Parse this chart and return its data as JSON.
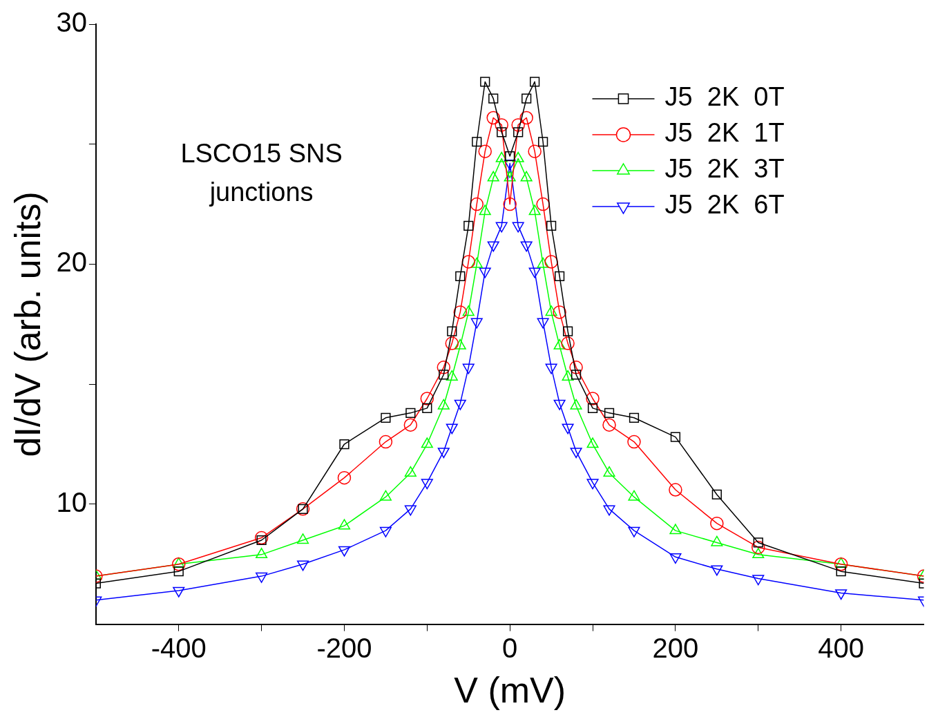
{
  "chart_data": {
    "type": "line",
    "xlabel": "V (mV)",
    "ylabel": "dI/dV (arb. units)",
    "x": [
      -500,
      -400,
      -300,
      -250,
      -200,
      -150,
      -120,
      -100,
      -80,
      -70,
      -60,
      -50,
      -40,
      -30,
      -20,
      -10,
      0,
      10,
      20,
      30,
      40,
      50,
      60,
      70,
      80,
      100,
      120,
      150,
      200,
      250,
      300,
      400,
      500
    ],
    "series": [
      {
        "name": "J5  2K  0T",
        "color": "#000000",
        "marker": "square",
        "values": [
          6.7,
          7.2,
          8.5,
          9.8,
          12.5,
          13.6,
          13.8,
          14.0,
          15.4,
          17.2,
          19.5,
          21.6,
          25.1,
          27.6,
          26.9,
          25.5,
          24.5,
          25.5,
          26.9,
          27.6,
          25.1,
          21.6,
          19.5,
          17.2,
          15.4,
          14.0,
          13.8,
          13.6,
          12.8,
          10.4,
          8.4,
          7.2,
          6.7
        ]
      },
      {
        "name": "J5  2K  1T",
        "color": "#ff0000",
        "marker": "circle",
        "values": [
          7.0,
          7.5,
          8.6,
          9.8,
          11.1,
          12.6,
          13.3,
          14.4,
          15.7,
          16.7,
          18.0,
          20.1,
          22.5,
          24.7,
          26.1,
          25.8,
          22.5,
          25.8,
          26.1,
          24.7,
          22.5,
          20.1,
          18.0,
          16.7,
          15.7,
          14.4,
          13.3,
          12.6,
          10.6,
          9.2,
          8.2,
          7.5,
          7.0
        ]
      },
      {
        "name": "J5  2K  3T",
        "color": "#00ff00",
        "marker": "triangle",
        "values": [
          7.0,
          7.5,
          7.9,
          8.5,
          9.1,
          10.3,
          11.3,
          12.5,
          14.1,
          15.3,
          16.6,
          18.0,
          20.0,
          22.2,
          23.6,
          24.4,
          23.6,
          24.4,
          23.6,
          22.2,
          20.0,
          18.0,
          16.6,
          15.3,
          14.1,
          12.5,
          11.3,
          10.3,
          8.9,
          8.4,
          7.9,
          7.5,
          7.0
        ]
      },
      {
        "name": "J5  2K  6T",
        "color": "#0000ff",
        "marker": "triangle-down",
        "values": [
          6.0,
          6.4,
          7.0,
          7.5,
          8.1,
          8.9,
          9.8,
          10.9,
          12.2,
          13.2,
          14.2,
          15.7,
          17.6,
          19.7,
          20.8,
          21.6,
          24.2,
          21.6,
          20.8,
          19.7,
          17.6,
          15.7,
          14.2,
          13.2,
          12.2,
          10.9,
          9.8,
          8.9,
          7.8,
          7.3,
          6.9,
          6.3,
          6.0
        ]
      }
    ],
    "xlim": [
      -500,
      500
    ],
    "xticks": [
      -400,
      {
        "value": -300,
        "label": null
      },
      -200,
      {
        "value": -100,
        "label": null
      },
      0,
      {
        "value": 100,
        "label": null
      },
      200,
      {
        "value": 300,
        "label": null
      },
      400
    ],
    "ylim": [
      5,
      30
    ],
    "yticks": [
      10,
      {
        "value": 15,
        "label": null
      },
      20,
      {
        "value": 25,
        "label": null
      },
      30
    ],
    "grid": false,
    "legend": "top right",
    "line_style": "solid",
    "annotations": [
      "LSCO15 SNS\njunctions"
    ]
  }
}
